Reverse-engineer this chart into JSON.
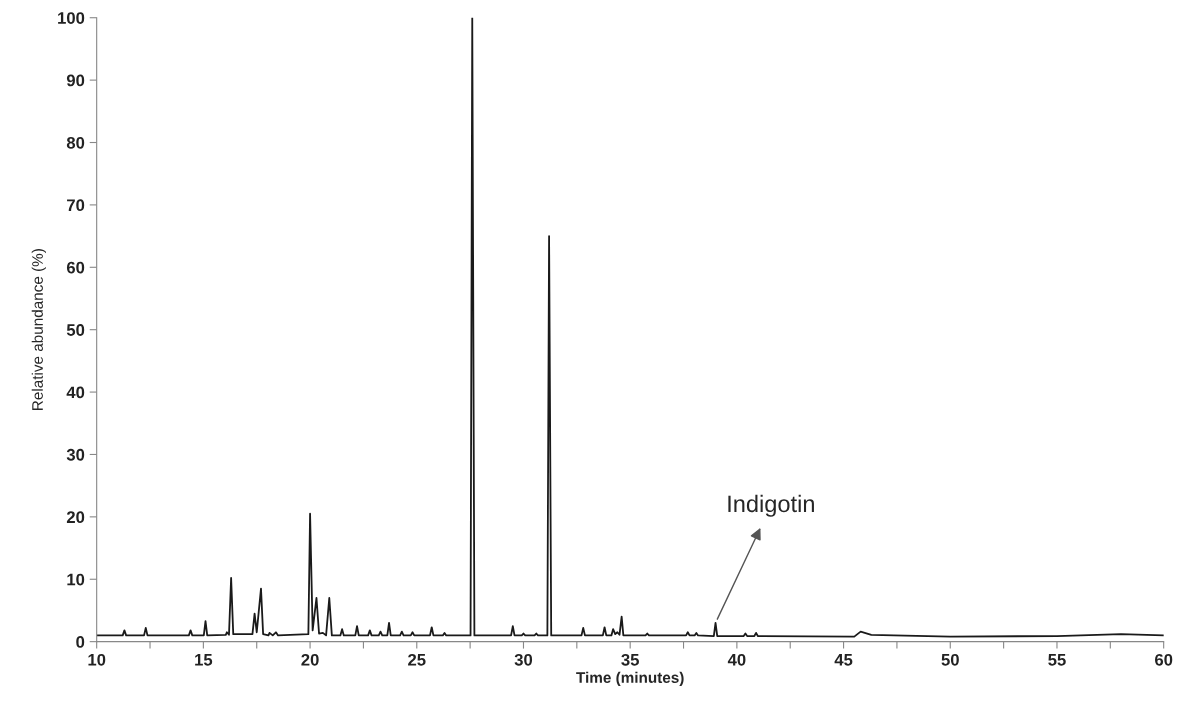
{
  "chart_data": {
    "type": "line",
    "xlabel": "Time (minutes)",
    "ylabel": "Relative abundance (%)",
    "xlim": [
      10,
      60
    ],
    "xticks": [
      10,
      {
        "value": 12.5,
        "label": null
      },
      15,
      {
        "value": 17.5,
        "label": null
      },
      20,
      {
        "value": 22.5,
        "label": null
      },
      25,
      {
        "value": 27.5,
        "label": null
      },
      30,
      {
        "value": 32.5,
        "label": null
      },
      35,
      {
        "value": 37.5,
        "label": null
      },
      40,
      {
        "value": 42.5,
        "label": null
      },
      45,
      {
        "value": 47.5,
        "label": null
      },
      50,
      {
        "value": 52.5,
        "label": null
      },
      55,
      {
        "value": 57.5,
        "label": null
      },
      60
    ],
    "ylim": [
      0,
      100
    ],
    "yticks": [
      0,
      10,
      20,
      30,
      40,
      50,
      60,
      70,
      80,
      90,
      100
    ],
    "grid": false,
    "legend": false,
    "marker": "none",
    "line_style": "solid",
    "annotations": [
      {
        "text": "Indigotin",
        "x": 39.0,
        "y": 3.0
      }
    ],
    "series": [
      {
        "color": "#1a1a1a",
        "x": [
          10,
          11.22,
          11.3,
          11.38,
          12.22,
          12.3,
          12.38,
          14.32,
          14.4,
          14.48,
          15.02,
          15.1,
          15.18,
          16.05,
          16.1,
          16.2,
          16.3,
          16.4,
          17.3,
          17.4,
          17.5,
          17.7,
          17.8,
          18.05,
          18.1,
          18.25,
          18.4,
          18.5,
          19.92,
          20.0,
          20.12,
          20.3,
          20.42,
          20.6,
          20.75,
          20.9,
          21.02,
          21.42,
          21.5,
          21.58,
          22.12,
          22.2,
          22.28,
          22.72,
          22.8,
          22.88,
          23.22,
          23.3,
          23.38,
          23.62,
          23.7,
          23.78,
          24.22,
          24.3,
          24.38,
          24.72,
          24.8,
          24.88,
          25.62,
          25.7,
          25.78,
          26.22,
          26.3,
          26.38,
          27.52,
          27.6,
          27.7,
          29.42,
          29.5,
          29.58,
          29.92,
          30.0,
          30.08,
          30.52,
          30.6,
          30.68,
          31.12,
          31.2,
          31.3,
          32.72,
          32.8,
          32.88,
          33.72,
          33.8,
          33.88,
          34.12,
          34.2,
          34.3,
          34.4,
          34.5,
          34.6,
          34.68,
          35.72,
          35.8,
          35.88,
          37.62,
          37.7,
          37.78,
          38.02,
          38.1,
          38.18,
          38.92,
          39.0,
          39.08,
          40.32,
          40.4,
          40.48,
          40.82,
          40.9,
          40.98,
          45.5,
          45.8,
          46.3,
          50,
          55,
          58,
          60
        ],
        "values": [
          1.0,
          1.0,
          1.8,
          1.0,
          1.0,
          2.2,
          1.0,
          1.0,
          1.8,
          1.0,
          1.0,
          3.3,
          1.0,
          1.1,
          1.5,
          1.1,
          10.2,
          1.2,
          1.2,
          4.5,
          1.5,
          8.5,
          1.2,
          1.0,
          1.4,
          1.0,
          1.5,
          1.0,
          1.2,
          20.5,
          1.8,
          7.0,
          1.3,
          1.4,
          1.0,
          7.0,
          1.0,
          1.0,
          2.0,
          1.0,
          1.0,
          2.5,
          1.0,
          1.0,
          1.8,
          1.0,
          1.0,
          1.6,
          1.0,
          1.0,
          3.0,
          1.0,
          1.0,
          1.6,
          1.0,
          1.0,
          1.5,
          1.0,
          1.0,
          2.3,
          1.0,
          1.0,
          1.4,
          1.0,
          1.0,
          100,
          1.0,
          1.0,
          2.5,
          1.0,
          1.0,
          1.3,
          1.0,
          1.0,
          1.3,
          1.0,
          1.0,
          65,
          1.0,
          1.0,
          2.2,
          1.0,
          1.0,
          2.3,
          1.0,
          1.0,
          2.0,
          1.2,
          1.5,
          1.1,
          4.0,
          1.0,
          1.0,
          1.3,
          1.0,
          1.0,
          1.5,
          1.0,
          1.0,
          1.4,
          1.0,
          0.9,
          3.0,
          0.9,
          0.9,
          1.3,
          0.9,
          0.9,
          1.4,
          0.9,
          0.8,
          1.6,
          1.1,
          0.8,
          0.9,
          1.2,
          1.0
        ]
      }
    ]
  }
}
